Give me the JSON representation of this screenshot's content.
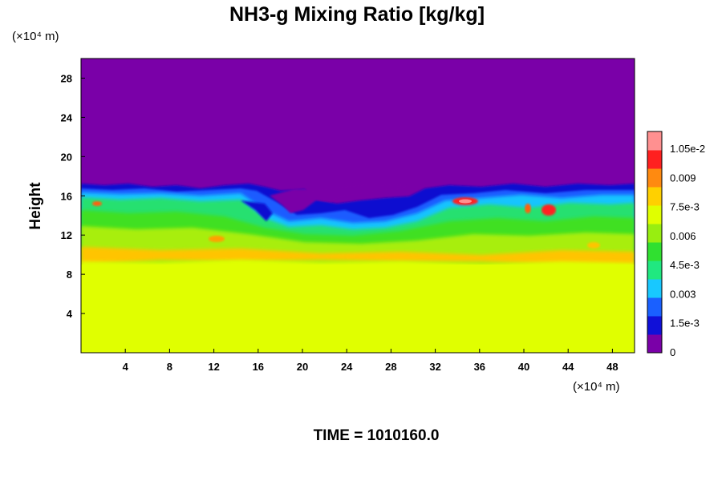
{
  "chart_data": {
    "type": "heatmap",
    "title": "NH3-g Mixing Ratio [kg/kg]",
    "ylabel": "Height",
    "xlabel": "",
    "x_unit": "(×10⁴ m)",
    "y_unit": "(×10⁴ m)",
    "x_ticks": [
      4,
      8,
      12,
      16,
      20,
      24,
      28,
      32,
      36,
      40,
      44,
      48
    ],
    "y_ticks": [
      4,
      8,
      12,
      16,
      20,
      24,
      28
    ],
    "xlim": [
      0,
      50
    ],
    "ylim": [
      0,
      30
    ],
    "colorbar_labels": [
      "1.05e-2",
      "0.009",
      "7.5e-3",
      "0.006",
      "4.5e-3",
      "0.003",
      "1.5e-3",
      "0"
    ],
    "colorbar_range": [
      0,
      0.012
    ],
    "colors": [
      "#7a00a8",
      "#1010d8",
      "#1a60ff",
      "#18c8ff",
      "#20e880",
      "#30e030",
      "#98ee10",
      "#e0ff00",
      "#ffd000",
      "#ff8a10",
      "#ff2020",
      "#ff9090"
    ],
    "field_description_bands": [
      {
        "y_from": 0,
        "y_to": 9.3,
        "value": 0.0078
      },
      {
        "y_from": 9.3,
        "y_to": 10.5,
        "value": 0.0085
      },
      {
        "y_from": 10.5,
        "y_to": 12.5,
        "value": 0.0072
      },
      {
        "y_from": 12.5,
        "y_to": 15.0,
        "value": 0.0055
      },
      {
        "y_from": 15.0,
        "y_to": 16.5,
        "value": 0.002
      },
      {
        "y_from": 16.5,
        "y_to": 30,
        "value": 0.0
      }
    ],
    "legend": "right"
  },
  "footer": {
    "time_label": "TIME = 1010160.0"
  }
}
